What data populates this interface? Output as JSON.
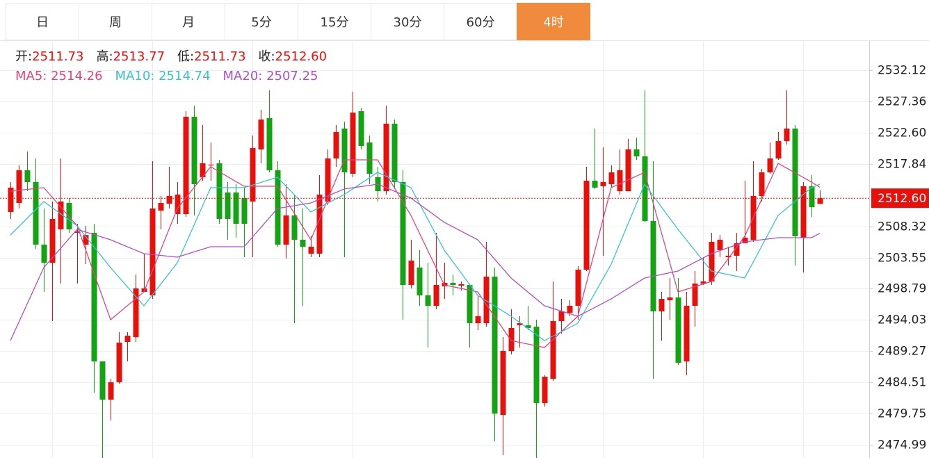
{
  "tabs": [
    "日",
    "周",
    "月",
    "5分",
    "15分",
    "30分",
    "60分",
    "4时"
  ],
  "active_tab": 7,
  "chart_data": {
    "type": "candlestick",
    "info": [
      {
        "label": "开:",
        "value": "2511.73"
      },
      {
        "label": "高:",
        "value": "2513.77"
      },
      {
        "label": "低:",
        "value": "2511.73"
      },
      {
        "label": "收:",
        "value": "2512.60"
      }
    ],
    "up_color": "#e8100b",
    "down_color": "#13a313",
    "open": [
      2510.5,
      2511.88,
      2516.86,
      2515.06,
      2505.52,
      2502.76,
      2507.85,
      2511.88,
      2507.32,
      2505.52,
      2507.32,
      2487.71,
      2481.88,
      2484.53,
      2490.68,
      2491.42,
      2498.31,
      2497.78,
      2510.71,
      2511.77,
      2510.18,
      2510.18,
      2525.02,
      2515.8,
      2517.6,
      2517.92,
      2513.47,
      2513.47,
      2512.62,
      2512.09,
      2520.04,
      2524.81,
      2516.86,
      2505.52,
      2509.97,
      2506.26,
      2504.14,
      2504.14,
      2512.09,
      2518.66,
      2523.22,
      2516.33,
      2525.87,
      2521.1,
      2515.8,
      2513.68,
      2523.96,
      2515.06,
      2499.37,
      2502.02,
      2497.78,
      2496.19,
      2499.16,
      2499.69,
      2499.26,
      2499.37,
      2493.54,
      2493.54,
      2500.64,
      2479.55,
      2489.3,
      2493.22,
      2493.22,
      2493.01,
      2481.35,
      2485.06,
      2493.86,
      2495.13,
      2496.19,
      2501.7,
      2515.27,
      2514.42,
      2514.74,
      2513.68,
      2513.68,
      2520.04,
      2518.98,
      2509.12,
      2495.34,
      2497.04,
      2497.46,
      2487.71,
      2496.19,
      2499.58,
      2499.9,
      2504.67,
      2503.61,
      2503.82,
      2505.73,
      2506.26,
      2512.94,
      2516.54,
      2518.66,
      2521.31,
      2523.22,
      2506.58,
      2514.42,
      2511.73
    ],
    "high": [
      2515.06,
      2517.6,
      2519.72,
      2518.66,
      2511.03,
      2512.09,
      2518.66,
      2512.62,
      2508.7,
      2508.38,
      2508.7,
      2487.71,
      2485.06,
      2492.16,
      2492.16,
      2500.96,
      2504.14,
      2518.24,
      2512.94,
      2517.39,
      2515.06,
      2525.87,
      2526.72,
      2523.75,
      2521.1,
      2518.45,
      2515.06,
      2514.74,
      2514.21,
      2522.16,
      2526.08,
      2529.05,
      2518.24,
      2514.74,
      2513.15,
      2511.03,
      2506.79,
      2516.12,
      2520.04,
      2523.75,
      2524.28,
      2528.84,
      2526.4,
      2522.16,
      2517.39,
      2526.72,
      2524.6,
      2516.86,
      2506.26,
      2504.67,
      2502.76,
      2507.32,
      2502.76,
      2500.96,
      2499.9,
      2499.58,
      2497.78,
      2505.94,
      2502.02,
      2491.42,
      2495.66,
      2494.6,
      2496.19,
      2494.07,
      2485.59,
      2499.9,
      2497.25,
      2497.04,
      2502.23,
      2517.39,
      2523.22,
      2520.36,
      2517.6,
      2520.04,
      2521.63,
      2521.84,
      2529.05,
      2518.24,
      2498.31,
      2500.43,
      2500.43,
      2498.31,
      2501.49,
      2503.61,
      2507.32,
      2506.99,
      2505.2,
      2507.32,
      2515.27,
      2518.24,
      2517.07,
      2521.1,
      2522.69,
      2529.05,
      2523.75,
      2515.06,
      2516.12,
      2513.77
    ],
    "low": [
      2509.44,
      2511.03,
      2513.68,
      2504.88,
      2498.31,
      2493.86,
      2499.58,
      2507.32,
      2499.58,
      2502.55,
      2482.94,
      2472.98,
      2478.7,
      2484.32,
      2487.71,
      2490.68,
      2498.31,
      2497.25,
      2507.85,
      2511.03,
      2508.7,
      2509.76,
      2509.97,
      2515.27,
      2515.27,
      2508.7,
      2506.26,
      2506.58,
      2503.61,
      2503.61,
      2517.92,
      2516.54,
      2505.2,
      2503.4,
      2493.54,
      2496.19,
      2503.61,
      2503.61,
      2511.56,
      2517.39,
      2503.61,
      2515.8,
      2520.04,
      2514.74,
      2512.09,
      2513.15,
      2514.21,
      2494.07,
      2498.84,
      2496.19,
      2489.83,
      2495.66,
      2497.25,
      2497.78,
      2498.52,
      2489.83,
      2492.48,
      2493.01,
      2475.52,
      2473.4,
      2488.77,
      2489.83,
      2492.48,
      2472.98,
      2480.82,
      2484.74,
      2491.95,
      2494.6,
      2494.07,
      2501.49,
      2514.0,
      2503.82,
      2514.21,
      2513.15,
      2513.68,
      2518.45,
      2508.91,
      2485.06,
      2490.89,
      2494.07,
      2487.18,
      2485.59,
      2493.01,
      2499.37,
      2499.37,
      2503.61,
      2502.34,
      2501.49,
      2505.73,
      2505.94,
      2512.09,
      2516.33,
      2518.45,
      2520.78,
      2502.34,
      2501.28,
      2509.76,
      2511.73
    ],
    "close": [
      2514.21,
      2516.86,
      2515.06,
      2505.52,
      2502.76,
      2509.44,
      2512.09,
      2507.85,
      2507.53,
      2506.99,
      2487.71,
      2481.88,
      2484.53,
      2490.57,
      2491.63,
      2498.84,
      2498.84,
      2511.03,
      2511.88,
      2512.94,
      2513.15,
      2525.02,
      2514.74,
      2517.92,
      2517.71,
      2509.44,
      2509.44,
      2508.7,
      2508.7,
      2520.25,
      2524.6,
      2516.86,
      2505.52,
      2509.97,
      2506.26,
      2505.2,
      2505.2,
      2513.15,
      2518.66,
      2522.69,
      2516.54,
      2525.66,
      2520.57,
      2516.33,
      2513.68,
      2523.96,
      2515.06,
      2499.37,
      2503.08,
      2497.78,
      2496.19,
      2499.37,
      2499.69,
      2499.37,
      2499.48,
      2493.54,
      2494.6,
      2500.64,
      2479.76,
      2489.3,
      2492.8,
      2493.54,
      2492.8,
      2481.35,
      2485.38,
      2493.86,
      2495.34,
      2496.19,
      2501.7,
      2515.27,
      2514.21,
      2515.06,
      2516.54,
      2516.86,
      2520.04,
      2518.98,
      2509.12,
      2495.34,
      2497.25,
      2497.46,
      2487.5,
      2496.19,
      2499.58,
      2499.9,
      2505.94,
      2506.26,
      2503.82,
      2505.73,
      2506.58,
      2512.94,
      2516.54,
      2518.66,
      2521.31,
      2523.22,
      2506.79,
      2514.42,
      2511.24,
      2512.6
    ],
    "series": [
      {
        "name": "MA5:",
        "color": "#e2457e",
        "x": [
          0,
          4,
          8,
          12,
          16,
          20,
          24,
          28,
          32,
          36,
          40,
          44,
          48,
          52,
          56,
          60,
          64,
          68,
          72,
          76,
          80,
          84,
          88,
          92,
          96,
          97
        ],
        "values": [
          2513.68,
          2514.21,
          2508.38,
          2494.07,
          2498.31,
          2511.03,
          2517.39,
          2514.42,
          2514.42,
          2506.26,
          2518.45,
          2518.45,
          2509.97,
          2499.37,
          2498.31,
          2490.89,
          2489.83,
          2494.6,
          2514.21,
          2516.54,
          2498.31,
          2499.9,
          2506.79,
          2517.92,
          2515.06,
          2514.26
        ]
      },
      {
        "name": "MA10:",
        "color": "#36c2d4",
        "x": [
          0,
          4,
          8,
          12,
          16,
          20,
          24,
          28,
          32,
          36,
          40,
          44,
          48,
          52,
          56,
          60,
          64,
          68,
          72,
          76,
          80,
          84,
          88,
          92,
          96,
          97
        ],
        "values": [
          2506.99,
          2512.09,
          2508.38,
          2502.02,
          2496.19,
          2502.76,
          2514.21,
          2514.21,
          2515.8,
          2510.5,
          2513.15,
          2516.54,
          2514.21,
          2504.67,
          2497.78,
          2494.6,
          2490.89,
          2493.54,
          2502.55,
          2514.74,
          2507.85,
          2501.49,
          2500.43,
          2509.97,
          2514.21,
          2514.74
        ]
      },
      {
        "name": "MA20:",
        "color": "#b24dc6",
        "x": [
          0,
          4,
          8,
          12,
          16,
          20,
          24,
          28,
          32,
          36,
          40,
          44,
          48,
          52,
          56,
          60,
          64,
          68,
          72,
          76,
          80,
          84,
          88,
          92,
          96,
          97
        ],
        "values": [
          2490.89,
          2502.02,
          2507.85,
          2506.26,
          2504.14,
          2503.61,
          2505.2,
          2505.2,
          2511.03,
          2511.88,
          2514.0,
          2514.74,
          2512.62,
          2508.91,
          2506.26,
          2500.43,
          2496.19,
          2494.6,
          2497.25,
          2500.43,
          2501.49,
          2504.14,
          2505.94,
          2506.58,
          2506.58,
          2507.25
        ]
      }
    ],
    "last_price": {
      "value": 2512.6,
      "label": "2512.60"
    },
    "ylim": [
      2472.98,
      2536.68
    ],
    "yticks": [
      2532.12,
      2527.36,
      {
        "value": 2522.6,
        "label": "2522.60"
      },
      2517.84,
      2508.32,
      2503.55,
      2498.79,
      2494.03,
      2489.27,
      2484.51,
      2479.75,
      2474.99
    ],
    "grid": true
  }
}
